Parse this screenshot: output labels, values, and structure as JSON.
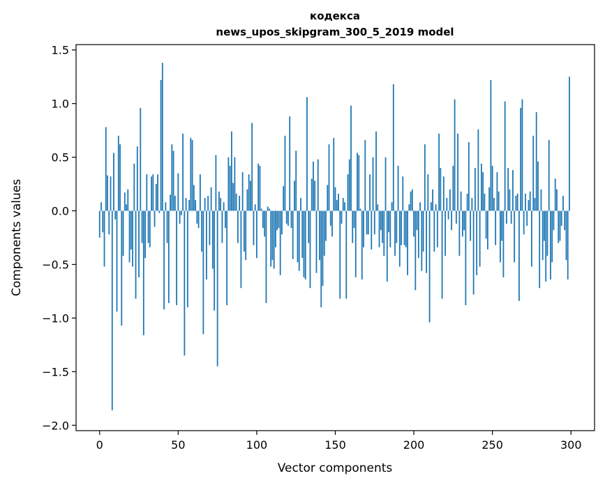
{
  "chart_data": {
    "type": "bar",
    "title": "кодекса",
    "subtitle": "news_upos_skipgram_300_5_2019 model",
    "xlabel": "Vector components",
    "ylabel": "Components values",
    "xlim": [
      -15,
      315
    ],
    "ylim": [
      -2.05,
      1.55
    ],
    "x_ticks": [
      0,
      50,
      100,
      150,
      200,
      250,
      300
    ],
    "x_tick_labels": [
      "0",
      "50",
      "100",
      "150",
      "200",
      "250",
      "300"
    ],
    "y_ticks": [
      -2.0,
      -1.5,
      -1.0,
      -0.5,
      0.0,
      0.5,
      1.0,
      1.5
    ],
    "y_tick_labels": [
      "−2.0",
      "−1.5",
      "−1.0",
      "−0.5",
      "0.0",
      "0.5",
      "1.0",
      "1.5"
    ],
    "bar_color": "#1f77b4",
    "grid": false,
    "values": [
      -0.25,
      0.08,
      -0.2,
      -0.52,
      0.78,
      0.33,
      -0.22,
      0.32,
      -1.86,
      0.54,
      -0.08,
      -0.94,
      0.7,
      0.62,
      -1.07,
      -0.42,
      0.17,
      0.06,
      0.2,
      -0.48,
      -0.36,
      -0.52,
      0.44,
      -0.82,
      0.6,
      -0.62,
      0.96,
      -0.3,
      -1.16,
      -0.44,
      0.34,
      -0.3,
      -0.34,
      0.32,
      0.34,
      -0.15,
      0.25,
      0.34,
      -0.02,
      1.22,
      1.38,
      -0.92,
      0.08,
      -0.3,
      -0.86,
      0.15,
      0.62,
      0.56,
      0.14,
      -0.88,
      0.35,
      -0.12,
      -0.04,
      0.72,
      -1.35,
      0.12,
      -0.9,
      0.1,
      0.68,
      0.66,
      0.24,
      0.1,
      -0.12,
      -0.16,
      0.34,
      -0.38,
      -1.15,
      0.12,
      -0.64,
      0.14,
      -0.32,
      0.22,
      -0.54,
      -0.93,
      0.52,
      -1.45,
      0.18,
      0.12,
      -0.3,
      0.08,
      -0.16,
      -0.88,
      0.5,
      0.42,
      0.74,
      0.26,
      0.5,
      0.16,
      -0.3,
      0.14,
      -0.72,
      0.36,
      -0.38,
      -0.46,
      0.2,
      0.34,
      0.28,
      0.82,
      -0.32,
      0.06,
      -0.44,
      0.44,
      0.42,
      0.02,
      -0.16,
      -0.24,
      -0.86,
      0.04,
      0.02,
      -0.52,
      -0.46,
      -0.54,
      -0.34,
      -0.18,
      -0.16,
      -0.6,
      -0.22,
      0.23,
      0.7,
      -0.12,
      -0.14,
      0.88,
      -0.16,
      -0.45,
      0.28,
      0.56,
      -0.48,
      -0.56,
      0.12,
      -0.44,
      -0.62,
      -0.64,
      1.06,
      -0.3,
      -0.72,
      0.3,
      0.46,
      0.28,
      -0.58,
      0.48,
      -0.46,
      -0.9,
      -0.7,
      -0.42,
      -0.28,
      0.24,
      0.62,
      -0.14,
      -0.24,
      0.68,
      0.22,
      0.1,
      0.16,
      -0.82,
      -0.12,
      0.12,
      0.08,
      -0.82,
      0.34,
      0.48,
      0.98,
      -0.3,
      -0.16,
      -0.62,
      0.54,
      0.52,
      0.02,
      -0.64,
      -0.34,
      0.66,
      -0.22,
      -0.22,
      0.34,
      -0.36,
      0.5,
      -0.22,
      0.74,
      0.06,
      -0.34,
      -0.18,
      -0.3,
      -0.42,
      0.5,
      -0.66,
      -0.2,
      -0.34,
      0.08,
      1.18,
      -0.42,
      -0.3,
      0.42,
      -0.52,
      -0.32,
      0.32,
      -0.32,
      -0.34,
      -0.6,
      0.06,
      0.18,
      0.2,
      -0.24,
      -0.74,
      -0.18,
      -0.44,
      0.08,
      -0.56,
      -0.38,
      0.62,
      -0.58,
      0.34,
      -1.04,
      0.08,
      0.2,
      -0.38,
      0.06,
      -0.34,
      0.72,
      0.4,
      -0.82,
      0.32,
      -0.42,
      0.12,
      -0.08,
      0.2,
      -0.18,
      0.42,
      1.04,
      -0.12,
      0.72,
      -0.42,
      0.18,
      -0.24,
      -0.18,
      -0.88,
      0.16,
      0.64,
      -0.28,
      0.12,
      -0.78,
      0.4,
      -0.6,
      0.76,
      -0.52,
      0.44,
      0.36,
      0.16,
      -0.26,
      -0.36,
      0.22,
      1.22,
      0.42,
      0.12,
      -0.32,
      0.36,
      0.18,
      -0.48,
      -0.28,
      -0.62,
      1.02,
      -0.12,
      0.4,
      0.2,
      -0.12,
      0.38,
      -0.48,
      0.14,
      0.16,
      -0.84,
      0.96,
      1.04,
      -0.22,
      0.16,
      -0.14,
      0.1,
      0.18,
      -0.52,
      0.7,
      0.12,
      0.92,
      0.46,
      -0.72,
      0.2,
      -0.46,
      -0.28,
      -0.66,
      -0.42,
      0.66,
      -0.64,
      -0.48,
      -0.18,
      0.3,
      0.2,
      -0.3,
      -0.28,
      -0.14,
      0.14,
      -0.18,
      -0.46,
      -0.64,
      1.25
    ]
  }
}
